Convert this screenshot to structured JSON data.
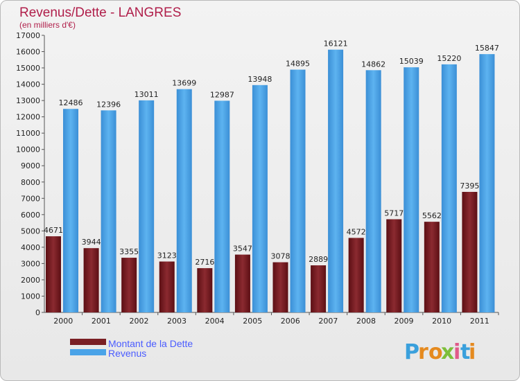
{
  "chart_data": {
    "type": "bar",
    "title": "Revenus/Dette - LANGRES",
    "subtitle": "(en milliers d'€)",
    "categories": [
      "2000",
      "2001",
      "2002",
      "2003",
      "2004",
      "2005",
      "2006",
      "2007",
      "2008",
      "2009",
      "2010",
      "2011"
    ],
    "series": [
      {
        "name": "Montant de la Dette",
        "color": "#7a1f24",
        "values": [
          4671,
          3944,
          3355,
          3123,
          2716,
          3547,
          3078,
          2889,
          4572,
          5717,
          5562,
          7395
        ],
        "labels": [
          "4671",
          "3944",
          "3355",
          "3123",
          "2716",
          "3547",
          "3078",
          "2889",
          "4572",
          "5717",
          "5562",
          "7395"
        ]
      },
      {
        "name": "Revenus",
        "color": "#4aa3e8",
        "values": [
          12486,
          12396,
          13011,
          13699,
          12987,
          13948,
          14895,
          16121,
          14862,
          15039,
          15220,
          15847
        ],
        "labels": [
          "12486",
          "12396",
          "13011",
          "13699",
          "12987",
          "13948",
          "14895",
          "16121",
          "14862",
          "15039",
          "15220",
          "15847"
        ]
      }
    ],
    "ylim": [
      0,
      17000
    ],
    "ytick_step": 1000,
    "grid": false,
    "legend_position": "bottom-left"
  },
  "logo": {
    "text": "Proxiti",
    "letters": [
      "P",
      "r",
      "o",
      "x",
      "i",
      "t",
      "i"
    ],
    "colors": [
      "#3aa0dc",
      "#e58a1f",
      "#e58a1f",
      "#7cbf3a",
      "#e05a8a",
      "#3aa0dc",
      "#e58a1f"
    ]
  }
}
